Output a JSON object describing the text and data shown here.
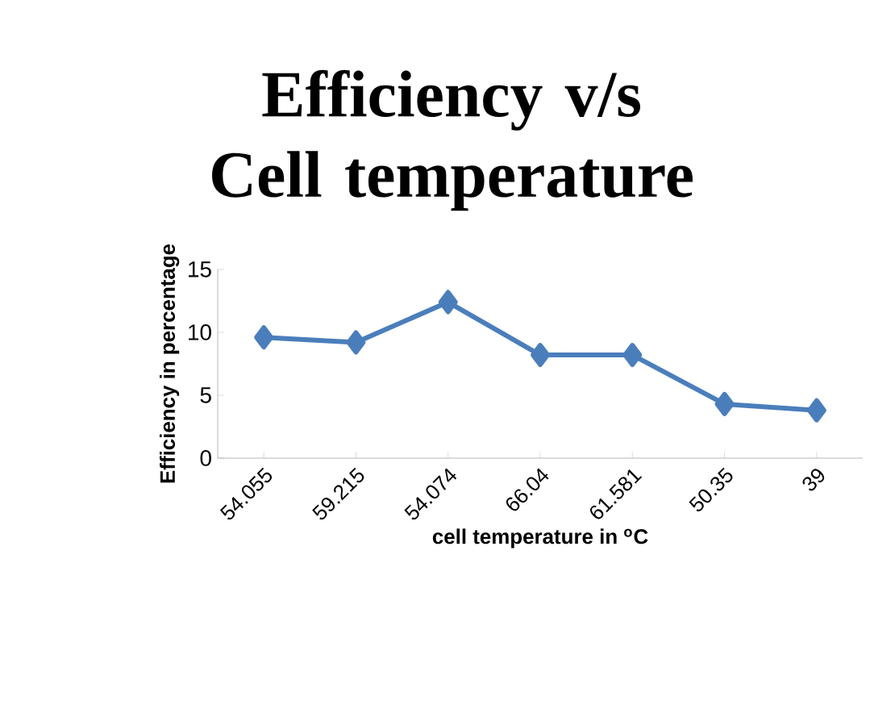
{
  "chart_data": {
    "type": "line",
    "title": "Efficiency v/s Cell temperature",
    "xlabel": "cell temperature in $^{o}$C",
    "ylabel": "Efficiency in percentage",
    "categories": [
      "54.055",
      "59.215",
      "54.074",
      "66.04",
      "61.581",
      "50.35",
      "39"
    ],
    "series": [
      {
        "color": "#4a7ebb",
        "values": [
          9.6,
          9.2,
          12.4,
          8.2,
          8.2,
          4.3,
          3.8
        ]
      }
    ],
    "ylim": [
      0,
      15
    ],
    "yticks": [
      0,
      5,
      10,
      15
    ],
    "marker": "diamond",
    "line_style": "solid",
    "grid": false
  }
}
